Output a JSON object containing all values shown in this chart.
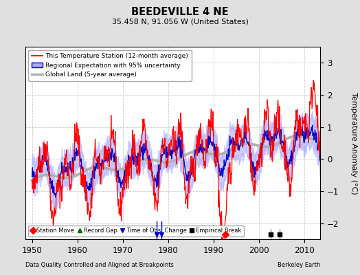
{
  "title": "BEEDEVILLE 4 NE",
  "subtitle": "35.458 N, 91.056 W (United States)",
  "xlabel_left": "Data Quality Controlled and Aligned at Breakpoints",
  "xlabel_right": "Berkeley Earth",
  "ylabel": "Temperature Anomaly (°C)",
  "xlim": [
    1948.5,
    2013.5
  ],
  "ylim": [
    -2.5,
    3.5
  ],
  "yticks": [
    -2,
    -1,
    0,
    1,
    2,
    3
  ],
  "xticks": [
    1950,
    1960,
    1970,
    1980,
    1990,
    2000,
    2010
  ],
  "bg_color": "#e0e0e0",
  "plot_bg_color": "#ffffff",
  "grid_color": "#cccccc",
  "station_color": "#ff0000",
  "regional_color": "#0000cc",
  "regional_fill": "#aaaaff",
  "global_color": "#b0b0b0",
  "station_move_year": 1992.5,
  "obs_change_years": [
    1977.5,
    1978.5
  ],
  "empirical_break_years": [
    2002.5,
    2004.5
  ],
  "legend_entries": [
    "This Temperature Station (12-month average)",
    "Regional Expectation with 95% uncertainty",
    "Global Land (5-year average)"
  ],
  "marker_labels": [
    "Station Move",
    "Record Gap",
    "Time of Obs. Change",
    "Empirical Break"
  ]
}
